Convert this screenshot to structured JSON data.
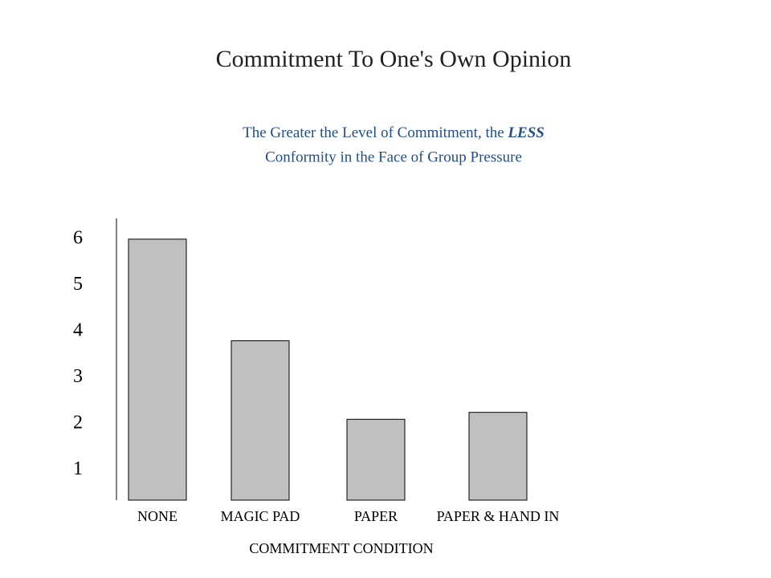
{
  "chart_data": {
    "type": "bar",
    "title": "Commitment To One's Own Opinion",
    "subtitle": [
      "The Greater the Level of Commitment, the",
      "LESS",
      "Conformity in the Face of Group Pressure"
    ],
    "x_label": "COMMITMENT CONDITION",
    "categories": [
      "NONE",
      "MAGIC PAD",
      "PAPER",
      "PAPER & HAND IN"
    ],
    "values": [
      6,
      3.8,
      2.1,
      2.25
    ],
    "color": "#c0c0c0",
    "ylim": [
      0.35,
      6.45
    ],
    "yticks": [
      1,
      2,
      3,
      4,
      5,
      6
    ]
  }
}
